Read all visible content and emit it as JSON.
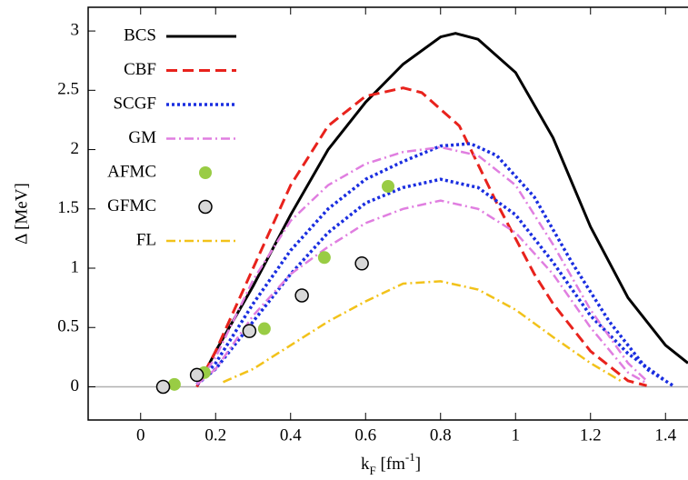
{
  "chart_data": {
    "type": "line",
    "y_label": "Δ [MeV]",
    "x_label_parts": [
      "k",
      "F",
      " [fm",
      "-1",
      "]"
    ],
    "xlim": [
      -0.14,
      1.46
    ],
    "ylim": [
      -0.28,
      3.2
    ],
    "xticks": [
      0,
      0.2,
      0.4,
      0.6,
      0.8,
      1,
      1.2,
      1.4
    ],
    "yticks": [
      0,
      0.5,
      1,
      1.5,
      2,
      2.5,
      3
    ],
    "zero_line": true,
    "series": [
      {
        "name": "BCS",
        "color": "#000000",
        "style": "solid",
        "x": [
          0.16,
          0.2,
          0.3,
          0.4,
          0.5,
          0.6,
          0.7,
          0.8,
          0.84,
          0.9,
          1.0,
          1.1,
          1.2,
          1.3,
          1.4,
          1.46
        ],
        "values": [
          0.05,
          0.3,
          0.85,
          1.45,
          2.0,
          2.4,
          2.72,
          2.95,
          2.98,
          2.93,
          2.65,
          2.1,
          1.35,
          0.75,
          0.35,
          0.2
        ]
      },
      {
        "name": "CBF",
        "color": "#e8221c",
        "style": "dashed",
        "x": [
          0.15,
          0.2,
          0.3,
          0.4,
          0.5,
          0.6,
          0.7,
          0.75,
          0.85,
          0.95,
          1.05,
          1.1,
          1.2,
          1.3,
          1.35
        ],
        "values": [
          0.0,
          0.3,
          1.0,
          1.7,
          2.2,
          2.45,
          2.52,
          2.48,
          2.2,
          1.55,
          0.95,
          0.7,
          0.3,
          0.05,
          0.01
        ]
      },
      {
        "name": "SCGF",
        "color": "#1a2ee0",
        "style": "dotted",
        "x": [
          0.15,
          0.2,
          0.3,
          0.4,
          0.5,
          0.6,
          0.7,
          0.8,
          0.88,
          0.95,
          1.05,
          1.15,
          1.25,
          1.35,
          1.42,
          null,
          0.15,
          0.2,
          0.3,
          0.4,
          0.5,
          0.6,
          0.7,
          0.8,
          0.9,
          1.0,
          1.1,
          1.2,
          1.3,
          1.4
        ],
        "values": [
          0.02,
          0.2,
          0.7,
          1.15,
          1.5,
          1.75,
          1.9,
          2.03,
          2.05,
          1.95,
          1.6,
          1.05,
          0.55,
          0.15,
          0.01,
          null,
          0.02,
          0.15,
          0.55,
          0.95,
          1.3,
          1.55,
          1.68,
          1.75,
          1.68,
          1.45,
          1.05,
          0.6,
          0.28,
          0.05
        ]
      },
      {
        "name": "GM",
        "color": "#e07ee0",
        "style": "dashdot",
        "x": [
          0.15,
          0.2,
          0.3,
          0.4,
          0.5,
          0.6,
          0.7,
          0.8,
          0.9,
          1.0,
          1.1,
          1.2,
          1.3,
          1.35,
          null,
          0.15,
          0.2,
          0.3,
          0.4,
          0.5,
          0.6,
          0.7,
          0.8,
          0.9,
          1.0,
          1.1,
          1.2,
          1.3,
          1.35
        ],
        "values": [
          0.02,
          0.25,
          0.9,
          1.4,
          1.7,
          1.88,
          1.98,
          2.02,
          1.95,
          1.7,
          1.2,
          0.65,
          0.2,
          0.05,
          null,
          0.02,
          0.15,
          0.6,
          0.95,
          1.18,
          1.38,
          1.5,
          1.57,
          1.5,
          1.3,
          0.95,
          0.5,
          0.12,
          0.03
        ]
      },
      {
        "name": "AFMC",
        "color": "#99cc44",
        "style": "points",
        "x": [
          0.09,
          0.17,
          0.33,
          0.49,
          0.66
        ],
        "values": [
          0.02,
          0.12,
          0.49,
          1.09,
          1.69
        ]
      },
      {
        "name": "GFMC",
        "color": "#d8d8d8",
        "edgecolor": "#000000",
        "style": "points",
        "x": [
          0.06,
          0.15,
          0.29,
          0.43,
          0.59
        ],
        "values": [
          0.0,
          0.1,
          0.47,
          0.77,
          1.04
        ]
      },
      {
        "name": "FL",
        "color": "#f2c21a",
        "style": "dashdot",
        "x": [
          0.22,
          0.3,
          0.4,
          0.5,
          0.6,
          0.7,
          0.8,
          0.9,
          1.0,
          1.1,
          1.2,
          1.28
        ],
        "values": [
          0.04,
          0.15,
          0.35,
          0.55,
          0.72,
          0.87,
          0.89,
          0.82,
          0.65,
          0.42,
          0.2,
          0.05
        ]
      }
    ]
  }
}
